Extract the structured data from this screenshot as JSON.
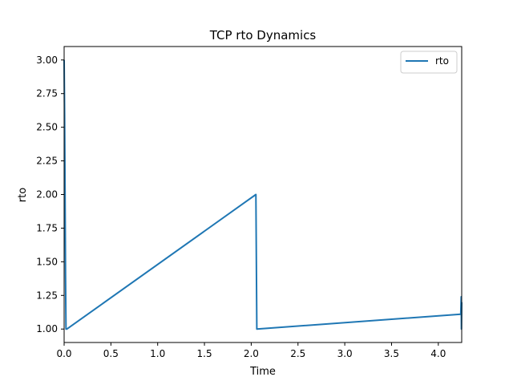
{
  "chart_data": {
    "type": "line",
    "title": "TCP rto Dynamics",
    "xlabel": "Time",
    "ylabel": "rto",
    "xlim": [
      0,
      4.25
    ],
    "ylim": [
      0.9,
      3.1
    ],
    "xticks": [
      "0.0",
      "0.5",
      "1.0",
      "1.5",
      "2.0",
      "2.5",
      "3.0",
      "3.5",
      "4.0"
    ],
    "xtick_values": [
      0.0,
      0.5,
      1.0,
      1.5,
      2.0,
      2.5,
      3.0,
      3.5,
      4.0
    ],
    "yticks": [
      "1.00",
      "1.25",
      "1.50",
      "1.75",
      "2.00",
      "2.25",
      "2.50",
      "2.75",
      "3.00"
    ],
    "ytick_values": [
      1.0,
      1.25,
      1.5,
      1.75,
      2.0,
      2.25,
      2.5,
      2.75,
      3.0
    ],
    "grid": false,
    "legend_position": "top-right",
    "series": [
      {
        "name": "rto",
        "color": "#1f77b4",
        "x": [
          0.0,
          0.005,
          0.01,
          0.015,
          0.02,
          0.03,
          2.05,
          2.06,
          4.24,
          4.245,
          4.247,
          4.25
        ],
        "y": [
          3.0,
          2.6,
          2.0,
          1.4,
          1.0,
          1.0,
          2.0,
          1.0,
          1.11,
          1.24,
          1.0,
          1.2
        ]
      }
    ]
  }
}
